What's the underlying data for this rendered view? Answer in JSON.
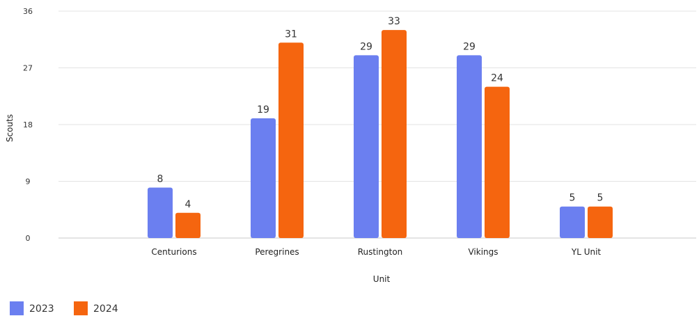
{
  "chart_data": {
    "type": "bar",
    "title": "",
    "xlabel": "Unit",
    "ylabel": "Scouts",
    "ylim": [
      0,
      36
    ],
    "yticks": [
      0,
      9,
      18,
      27,
      36
    ],
    "grid": true,
    "legend_position": "bottom-left",
    "categories": [
      "Centurions",
      "Peregrines",
      "Rustington",
      "Vikings",
      "YL Unit"
    ],
    "series": [
      {
        "name": "2023",
        "color": "#6b7ff0",
        "values": [
          8,
          19,
          29,
          29,
          5
        ]
      },
      {
        "name": "2024",
        "color": "#f5650f",
        "values": [
          4,
          31,
          33,
          24,
          5
        ]
      }
    ]
  }
}
